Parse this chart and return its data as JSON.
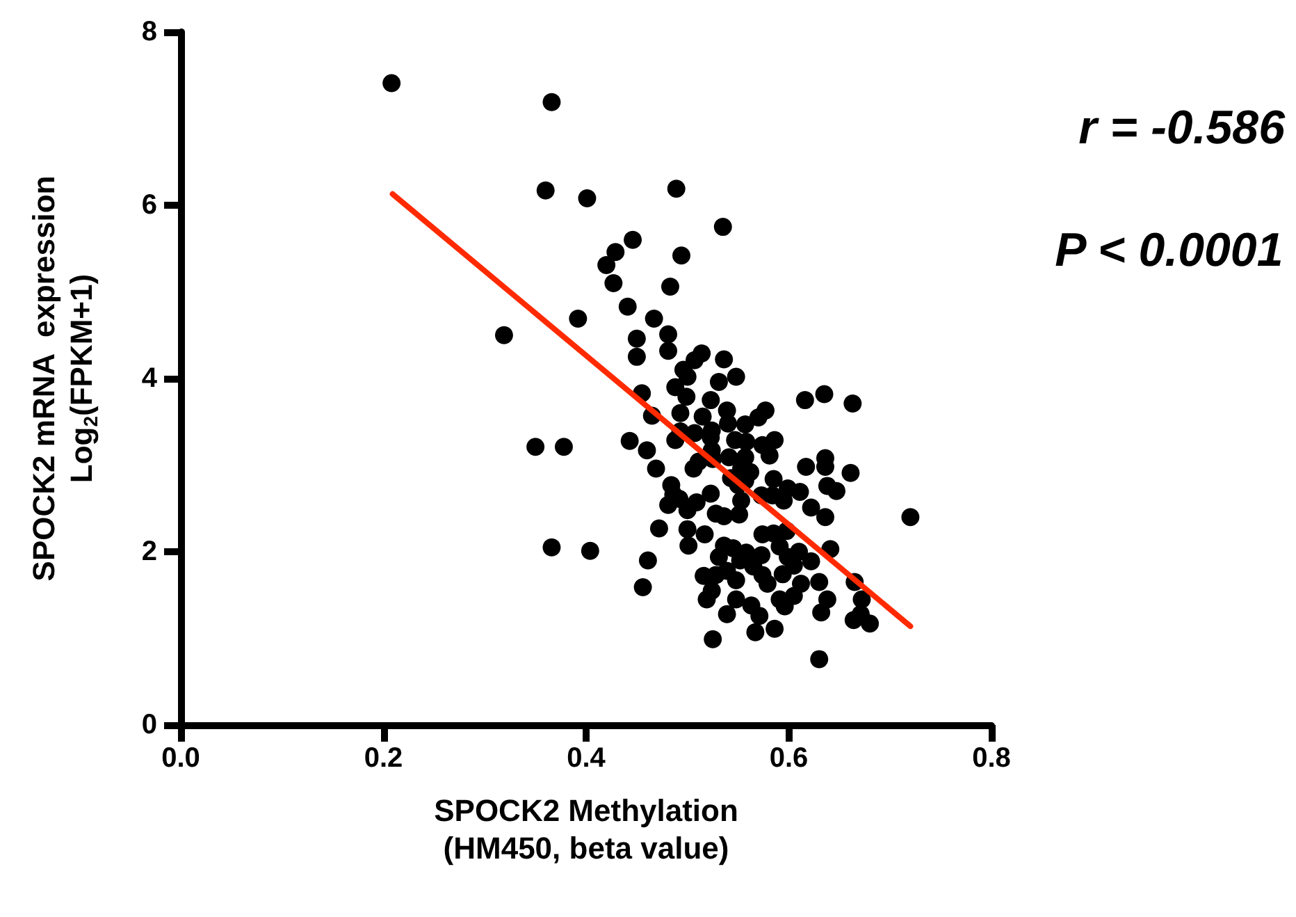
{
  "chart_data": {
    "type": "scatter",
    "xlabel": "SPOCK2 Methylation\n(HM450, beta value)",
    "ylabel": "SPOCK2 mRNA  expression\nLog$_{2}$(FPKM+1)",
    "annotations": [
      "r = -0.586",
      "P < 0.0001"
    ],
    "xlim": [
      0,
      0.8
    ],
    "xticks": [
      {
        "value": 0,
        "label": "0.0"
      },
      {
        "value": 0.2,
        "label": "0.2"
      },
      {
        "value": 0.4,
        "label": "0.4"
      },
      {
        "value": 0.6,
        "label": "0.6"
      },
      {
        "value": 0.8,
        "label": "0.8"
      }
    ],
    "ylim": [
      0,
      8
    ],
    "yticks": [
      0,
      2,
      4,
      6,
      8
    ],
    "grid": false,
    "series": [
      {
        "color": "#000000",
        "marker": "circle",
        "x": [
          0.208,
          0.366,
          0.36,
          0.401,
          0.489,
          0.535,
          0.446,
          0.429,
          0.494,
          0.42,
          0.427,
          0.483,
          0.441,
          0.392,
          0.467,
          0.319,
          0.45,
          0.481,
          0.45,
          0.481,
          0.514,
          0.507,
          0.536,
          0.496,
          0.5,
          0.548,
          0.531,
          0.488,
          0.455,
          0.499,
          0.523,
          0.616,
          0.635,
          0.663,
          0.539,
          0.577,
          0.57,
          0.515,
          0.493,
          0.465,
          0.557,
          0.54,
          0.524,
          0.507,
          0.493,
          0.523,
          0.488,
          0.443,
          0.35,
          0.378,
          0.547,
          0.558,
          0.586,
          0.574,
          0.524,
          0.46,
          0.541,
          0.557,
          0.581,
          0.636,
          0.511,
          0.525,
          0.506,
          0.617,
          0.636,
          0.469,
          0.553,
          0.562,
          0.661,
          0.543,
          0.585,
          0.557,
          0.638,
          0.484,
          0.55,
          0.647,
          0.599,
          0.611,
          0.523,
          0.486,
          0.573,
          0.584,
          0.595,
          0.553,
          0.492,
          0.509,
          0.481,
          0.5,
          0.622,
          0.72,
          0.528,
          0.536,
          0.551,
          0.636,
          0.472,
          0.5,
          0.517,
          0.574,
          0.585,
          0.598,
          0.501,
          0.536,
          0.545,
          0.366,
          0.404,
          0.641,
          0.591,
          0.61,
          0.558,
          0.531,
          0.573,
          0.599,
          0.552,
          0.461,
          0.622,
          0.605,
          0.565,
          0.539,
          0.528,
          0.516,
          0.574,
          0.594,
          0.548,
          0.63,
          0.665,
          0.579,
          0.612,
          0.524,
          0.456,
          0.605,
          0.519,
          0.548,
          0.591,
          0.638,
          0.672,
          0.596,
          0.563,
          0.632,
          0.539,
          0.571,
          0.671,
          0.664,
          0.68,
          0.586,
          0.567,
          0.525,
          0.63
        ],
        "values": [
          7.41,
          7.19,
          6.17,
          6.08,
          6.19,
          5.75,
          5.6,
          5.46,
          5.42,
          5.31,
          5.1,
          5.06,
          4.83,
          4.69,
          4.69,
          4.5,
          4.46,
          4.51,
          4.25,
          4.32,
          4.29,
          4.21,
          4.22,
          4.1,
          4.02,
          4.02,
          3.96,
          3.9,
          3.83,
          3.79,
          3.75,
          3.75,
          3.82,
          3.71,
          3.63,
          3.63,
          3.55,
          3.56,
          3.6,
          3.57,
          3.47,
          3.48,
          3.4,
          3.37,
          3.39,
          3.32,
          3.29,
          3.28,
          3.21,
          3.21,
          3.29,
          3.27,
          3.29,
          3.23,
          3.17,
          3.17,
          3.09,
          3.09,
          3.11,
          3.08,
          3.04,
          3.07,
          2.96,
          2.98,
          2.98,
          2.96,
          2.96,
          2.92,
          2.91,
          2.85,
          2.84,
          2.82,
          2.76,
          2.77,
          2.77,
          2.7,
          2.73,
          2.69,
          2.67,
          2.66,
          2.65,
          2.65,
          2.59,
          2.59,
          2.61,
          2.57,
          2.54,
          2.48,
          2.51,
          2.4,
          2.44,
          2.41,
          2.43,
          2.4,
          2.27,
          2.26,
          2.2,
          2.2,
          2.21,
          2.24,
          2.07,
          2.07,
          2.04,
          2.05,
          2.01,
          2.03,
          2.06,
          2.0,
          1.99,
          1.94,
          1.96,
          1.94,
          1.9,
          1.9,
          1.89,
          1.84,
          1.83,
          1.78,
          1.73,
          1.72,
          1.73,
          1.74,
          1.67,
          1.65,
          1.65,
          1.63,
          1.63,
          1.55,
          1.59,
          1.49,
          1.45,
          1.45,
          1.45,
          1.45,
          1.45,
          1.37,
          1.38,
          1.3,
          1.28,
          1.26,
          1.28,
          1.21,
          1.17,
          1.11,
          1.07,
          0.99,
          0.76
        ]
      },
      {
        "type": "line",
        "color": "#ff2a00",
        "marker": "none",
        "line_style": "solid",
        "x": [
          0.209,
          0.72
        ],
        "values": [
          6.13,
          1.14
        ]
      }
    ]
  }
}
